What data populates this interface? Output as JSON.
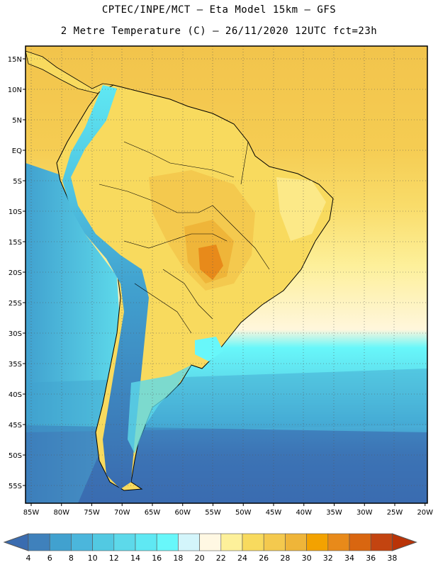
{
  "header": {
    "title_line1": "CPTEC/INPE/MCT –  Eta Model 15km – GFS",
    "title_line2": "2 Metre Temperature (C) – 26/11/2020 12UTC fct=23h"
  },
  "axes": {
    "lon_labels": [
      "85W",
      "80W",
      "75W",
      "70W",
      "65W",
      "60W",
      "55W",
      "50W",
      "45W",
      "40W",
      "35W",
      "30W",
      "25W",
      "20W"
    ],
    "lat_labels": [
      "15N",
      "10N",
      "5N",
      "EQ",
      "5S",
      "10S",
      "15S",
      "20S",
      "25S",
      "30S",
      "35S",
      "40S",
      "45S",
      "50S",
      "55S"
    ]
  },
  "colorbar": {
    "labels": [
      "4",
      "6",
      "8",
      "10",
      "12",
      "14",
      "16",
      "18",
      "20",
      "22",
      "24",
      "26",
      "28",
      "30",
      "32",
      "34",
      "36",
      "38"
    ],
    "colors": [
      "#3a6cb0",
      "#3f81bc",
      "#41a1cf",
      "#4bb6dc",
      "#52c9e2",
      "#5dd9ea",
      "#5fe8f3",
      "#68f7fa",
      "#d3f5fb",
      "#fff8e3",
      "#fdf09a",
      "#f8da5e",
      "#f4c94e",
      "#efb539",
      "#f3a200",
      "#e88a1a",
      "#d96610",
      "#c34410",
      "#b93307"
    ]
  },
  "chart_data": {
    "type": "heatmap",
    "variable": "2 Metre Temperature",
    "units": "C",
    "model": "Eta Model 15km – GFS",
    "init": "26/11/2020 12UTC",
    "forecast_hour": 23,
    "lon_range": [
      -86,
      -19.5
    ],
    "lat_range": [
      -58,
      17
    ],
    "levels": [
      4,
      6,
      8,
      10,
      12,
      14,
      16,
      18,
      20,
      22,
      24,
      26,
      28,
      30,
      32,
      34,
      36,
      38
    ]
  }
}
